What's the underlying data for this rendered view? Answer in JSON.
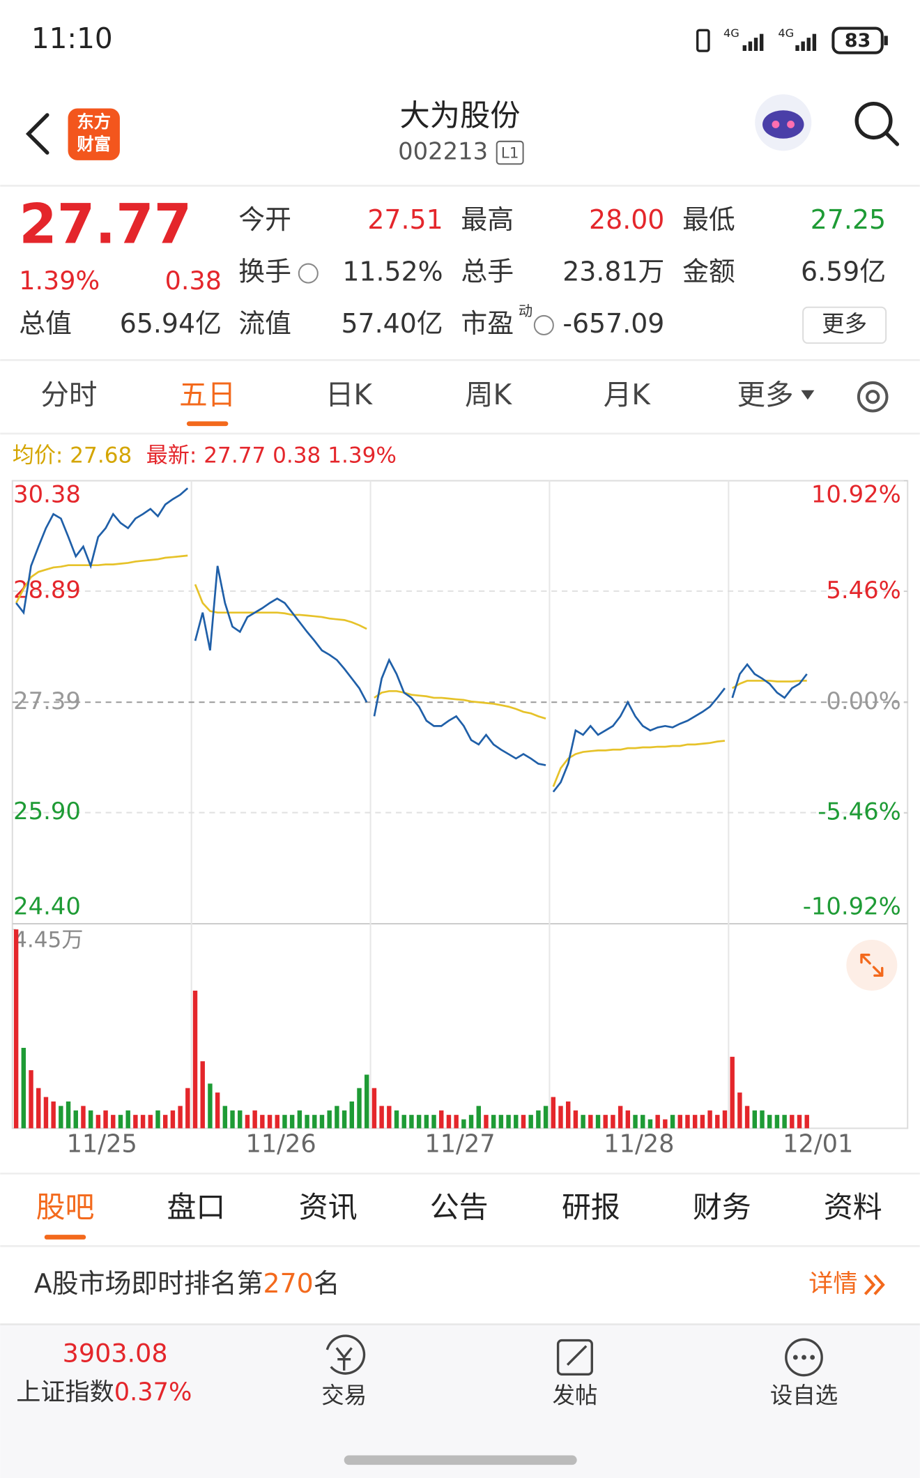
{
  "status_bar": {
    "time": "11:10",
    "battery": "83"
  },
  "header": {
    "title": "大为股份",
    "code": "002213",
    "level": "L1",
    "logo": [
      "东方",
      "财富"
    ]
  },
  "quote": {
    "price": "27.77",
    "change_pct": "1.39%",
    "change": "0.38",
    "total_value": {
      "label": "总值",
      "value": "65.94亿"
    },
    "stats": [
      {
        "label": "今开",
        "value": "27.51",
        "color": "#e4262b"
      },
      {
        "label": "最高",
        "value": "28.00",
        "color": "#e4262b"
      },
      {
        "label": "最低",
        "value": "27.25",
        "color": "#1e9b35"
      },
      {
        "label": "换手",
        "value": "11.52%",
        "color": "#333333"
      },
      {
        "label": "总手",
        "value": "23.81万",
        "color": "#333333"
      },
      {
        "label": "金额",
        "value": "6.59亿",
        "color": "#333333"
      },
      {
        "label": "流值",
        "value": "57.40亿",
        "color": "#333333"
      },
      {
        "label": "市盈",
        "sup": "动",
        "value": "-657.09",
        "color": "#333333"
      }
    ],
    "more": "更多"
  },
  "tabs": {
    "items": [
      "分时",
      "五日",
      "日K",
      "周K",
      "月K",
      "更多"
    ],
    "active": 1
  },
  "chart_data": {
    "type": "line",
    "legend": [
      {
        "text": "均价: 27.68",
        "color": "#d4a500"
      },
      {
        "text": "最新: 27.77 0.38 1.39%",
        "color": "#e4262b"
      }
    ],
    "categories": [
      "11/25",
      "11/26",
      "11/27",
      "11/28",
      "12/01"
    ],
    "price_color": "#1f5fa8",
    "avg_color": "#e6c229",
    "ylim": [
      24.4,
      30.38
    ],
    "yticks": [
      30.38,
      28.89,
      27.39,
      {
        "value": 25.9,
        "label": "25.90"
      },
      {
        "value": 24.4,
        "label": "24.40"
      }
    ],
    "baseline": 27.39,
    "y2lim": [
      -10.92,
      10.92
    ],
    "y2ticks": [
      {
        "value": 10.92,
        "label": "10.92%"
      },
      {
        "value": 5.46,
        "label": "5.46%"
      },
      {
        "value": 0,
        "label": "0.00%"
      },
      {
        "value": -5.46,
        "label": "-5.46%"
      },
      {
        "value": -10.92,
        "label": "-10.92%"
      }
    ],
    "volume_ylim": [
      0,
      4.45
    ],
    "volume_ticks": [
      {
        "value": 4.45,
        "label": "4.45万"
      }
    ],
    "days": [
      {
        "price": [
          28.73,
          28.6,
          29.23,
          29.49,
          29.74,
          29.93,
          29.87,
          29.62,
          29.36,
          29.49,
          29.23,
          29.62,
          29.74,
          29.93,
          29.81,
          29.74,
          29.87,
          29.93,
          30.0,
          29.9,
          30.06,
          30.13,
          30.19,
          30.28
        ],
        "avg": [
          28.73,
          28.92,
          29.08,
          29.15,
          29.18,
          29.21,
          29.22,
          29.24,
          29.24,
          29.24,
          29.24,
          29.24,
          29.25,
          29.25,
          29.26,
          29.27,
          29.29,
          29.3,
          29.31,
          29.32,
          29.34,
          29.35,
          29.36,
          29.37
        ],
        "volume": [
          4.45,
          1.8,
          1.3,
          0.9,
          0.7,
          0.6,
          0.5,
          0.6,
          0.4,
          0.5,
          0.4,
          0.3,
          0.4,
          0.3,
          0.3,
          0.4,
          0.3,
          0.3,
          0.3,
          0.4,
          0.3,
          0.4,
          0.5,
          0.9
        ]
      },
      {
        "price": [
          28.22,
          28.6,
          28.09,
          29.23,
          28.73,
          28.41,
          28.34,
          28.54,
          28.6,
          28.66,
          28.73,
          28.79,
          28.73,
          28.6,
          28.47,
          28.34,
          28.22,
          28.09,
          28.03,
          27.96,
          27.84,
          27.71,
          27.58,
          27.39
        ],
        "avg": [
          28.98,
          28.73,
          28.62,
          28.6,
          28.6,
          28.6,
          28.6,
          28.6,
          28.6,
          28.6,
          28.6,
          28.6,
          28.59,
          28.57,
          28.57,
          28.56,
          28.55,
          28.54,
          28.52,
          28.51,
          28.5,
          28.47,
          28.43,
          28.38
        ],
        "volume": [
          3.08,
          1.5,
          1.0,
          0.8,
          0.5,
          0.4,
          0.4,
          0.3,
          0.4,
          0.3,
          0.3,
          0.3,
          0.3,
          0.3,
          0.4,
          0.3,
          0.3,
          0.3,
          0.4,
          0.5,
          0.4,
          0.6,
          0.9,
          1.2
        ]
      },
      {
        "price": [
          27.2,
          27.71,
          27.96,
          27.77,
          27.52,
          27.45,
          27.33,
          27.14,
          27.07,
          27.07,
          27.14,
          27.2,
          27.07,
          26.88,
          26.82,
          26.95,
          26.82,
          26.75,
          26.69,
          26.63,
          26.69,
          26.63,
          26.56,
          26.54
        ],
        "avg": [
          27.45,
          27.52,
          27.54,
          27.54,
          27.52,
          27.49,
          27.48,
          27.47,
          27.45,
          27.45,
          27.44,
          27.43,
          27.42,
          27.4,
          27.39,
          27.38,
          27.37,
          27.35,
          27.33,
          27.3,
          27.26,
          27.24,
          27.2,
          27.17
        ],
        "volume": [
          0.9,
          0.5,
          0.5,
          0.4,
          0.3,
          0.3,
          0.3,
          0.3,
          0.3,
          0.4,
          0.3,
          0.3,
          0.2,
          0.3,
          0.5,
          0.3,
          0.3,
          0.3,
          0.3,
          0.3,
          0.3,
          0.3,
          0.4,
          0.5
        ]
      },
      {
        "price": [
          26.18,
          26.31,
          26.56,
          27.01,
          26.95,
          27.07,
          26.95,
          27.01,
          27.07,
          27.2,
          27.39,
          27.2,
          27.07,
          27.01,
          27.05,
          27.07,
          27.05,
          27.1,
          27.14,
          27.2,
          27.26,
          27.33,
          27.45,
          27.58
        ],
        "avg": [
          26.25,
          26.5,
          26.63,
          26.69,
          26.72,
          26.73,
          26.74,
          26.74,
          26.75,
          26.75,
          26.77,
          26.77,
          26.78,
          26.78,
          26.79,
          26.79,
          26.8,
          26.8,
          26.82,
          26.82,
          26.83,
          26.84,
          26.86,
          26.87
        ],
        "volume": [
          0.7,
          0.5,
          0.6,
          0.4,
          0.3,
          0.3,
          0.3,
          0.3,
          0.3,
          0.5,
          0.4,
          0.3,
          0.3,
          0.2,
          0.3,
          0.2,
          0.3,
          0.3,
          0.3,
          0.3,
          0.3,
          0.4,
          0.3,
          0.4
        ]
      },
      {
        "price": [
          27.45,
          27.77,
          27.9,
          27.77,
          27.71,
          27.64,
          27.52,
          27.45,
          27.58,
          27.64,
          27.77
        ],
        "avg": [
          27.58,
          27.64,
          27.68,
          27.68,
          27.68,
          27.68,
          27.67,
          27.67,
          27.67,
          27.68,
          27.68
        ],
        "volume": [
          1.6,
          0.8,
          0.5,
          0.4,
          0.4,
          0.3,
          0.3,
          0.3,
          0.3,
          0.3,
          0.3
        ]
      }
    ]
  },
  "sub_tabs": {
    "items": [
      "股吧",
      "盘口",
      "资讯",
      "公告",
      "研报",
      "财务",
      "资料"
    ],
    "active": 0
  },
  "ranking": {
    "prefix": "A股市场即时排名第",
    "rank": "270",
    "suffix": "名",
    "link": "详情"
  },
  "bottom_bar": {
    "index_value": "3903.08",
    "index_name": "上证指数",
    "index_change": "0.37%",
    "actions": [
      "交易",
      "发帖",
      "设自选"
    ]
  }
}
